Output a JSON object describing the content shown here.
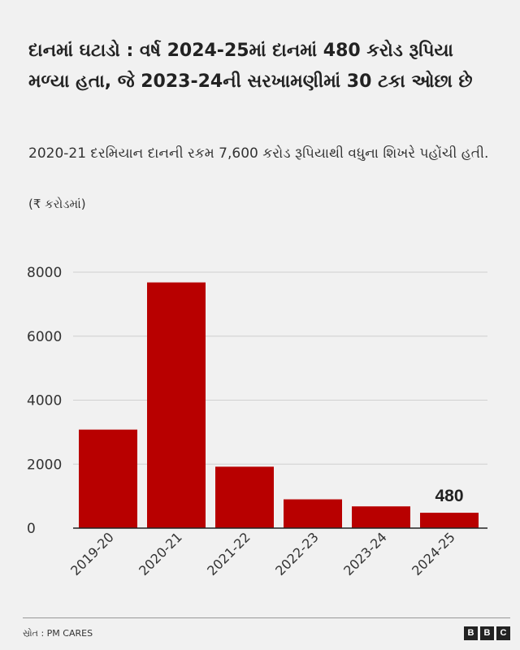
{
  "title": "દાનમાં ઘટાડો : વર્ષ 2024-25માં દાનમાં 480 કરોડ રૂપિયા મળ્યા હતા, જે 2023-24ની સરખામણીમાં 30 ટકા ઓછા છે",
  "subtitle": "2020-21 દરમિયાન દાનની રકમ 7,600 કરોડ રૂપિયાથી વધુના શિખરે પહોંચી હતી.",
  "unit_label": "(₹ કરોડમાં)",
  "source": "સ્રોત : PM CARES",
  "logo": {
    "letters": [
      "B",
      "B",
      "C"
    ]
  },
  "chart_data": {
    "type": "bar",
    "categories": [
      "2019-20",
      "2020-21",
      "2021-22",
      "2022-23",
      "2023-24",
      "2024-25"
    ],
    "values": [
      3080,
      7680,
      1920,
      900,
      680,
      480
    ],
    "ylim": [
      0,
      8000
    ],
    "yticks": [
      0,
      2000,
      4000,
      6000,
      8000
    ],
    "grid": true,
    "bar_color": "#b80000",
    "data_labels": [
      {
        "category": "2024-25",
        "text": "480"
      }
    ]
  }
}
